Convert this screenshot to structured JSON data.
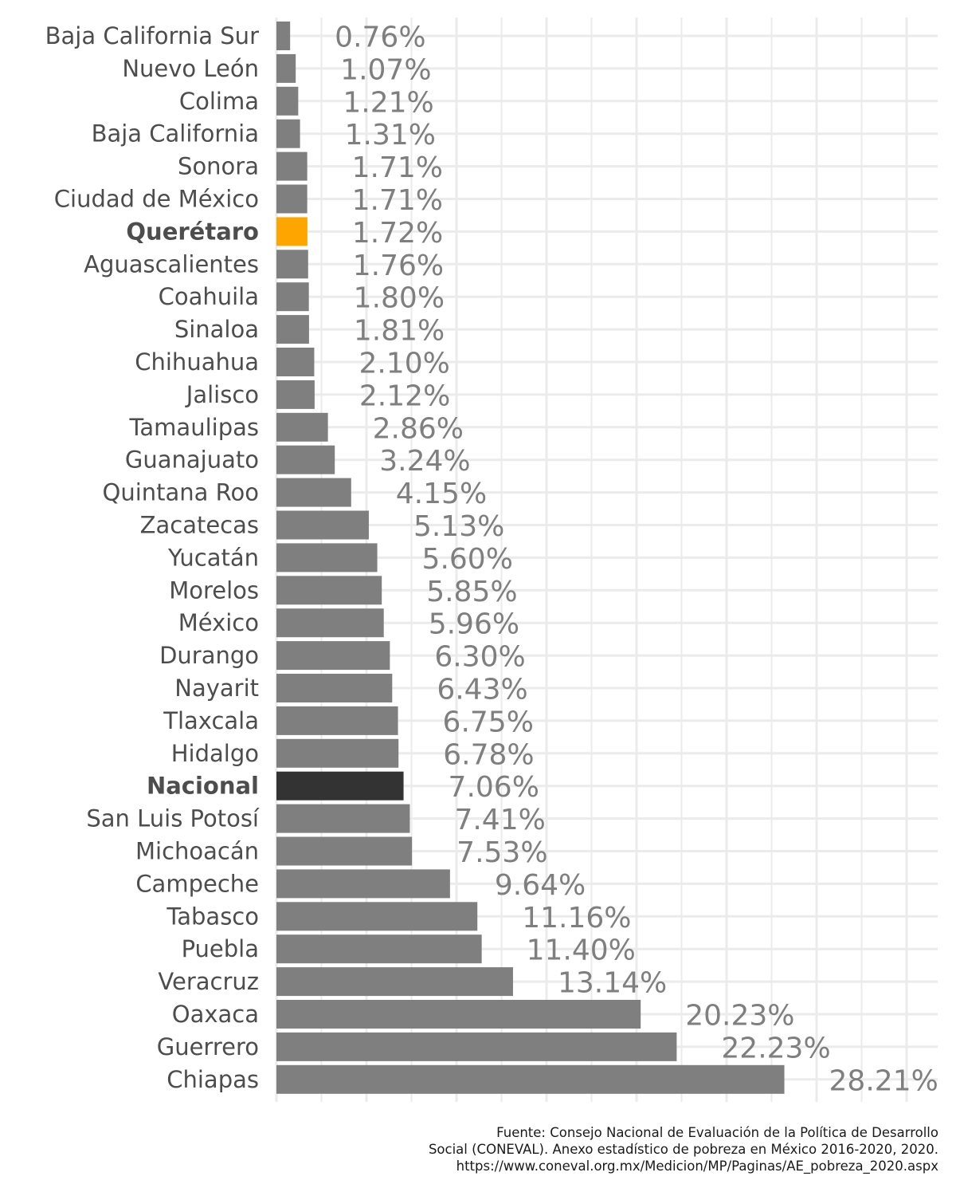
{
  "chart_data": {
    "type": "bar",
    "orientation": "horizontal",
    "categories": [
      "Baja California Sur",
      "Nuevo León",
      "Colima",
      "Baja California",
      "Sonora",
      "Ciudad de México",
      "Querétaro",
      "Aguascalientes",
      "Coahuila",
      "Sinaloa",
      "Chihuahua",
      "Jalisco",
      "Tamaulipas",
      "Guanajuato",
      "Quintana Roo",
      "Zacatecas",
      "Yucatán",
      "Morelos",
      "México",
      "Durango",
      "Nayarit",
      "Tlaxcala",
      "Hidalgo",
      "Nacional",
      "San Luis Potosí",
      "Michoacán",
      "Campeche",
      "Tabasco",
      "Puebla",
      "Veracruz",
      "Oaxaca",
      "Guerrero",
      "Chiapas"
    ],
    "values": [
      0.76,
      1.07,
      1.21,
      1.31,
      1.71,
      1.71,
      1.72,
      1.76,
      1.8,
      1.81,
      2.1,
      2.12,
      2.86,
      3.24,
      4.15,
      5.13,
      5.6,
      5.85,
      5.96,
      6.3,
      6.43,
      6.75,
      6.78,
      7.06,
      7.41,
      7.53,
      9.64,
      11.16,
      11.4,
      13.14,
      20.23,
      22.23,
      28.21
    ],
    "value_labels": [
      "0.76%",
      "1.07%",
      "1.21%",
      "1.31%",
      "1.71%",
      "1.71%",
      "1.72%",
      "1.76%",
      "1.80%",
      "1.81%",
      "2.10%",
      "2.12%",
      "2.86%",
      "3.24%",
      "4.15%",
      "5.13%",
      "5.60%",
      "5.85%",
      "5.96%",
      "6.30%",
      "6.43%",
      "6.75%",
      "6.78%",
      "7.06%",
      "7.41%",
      "7.53%",
      "9.64%",
      "11.16%",
      "11.40%",
      "13.14%",
      "20.23%",
      "22.23%",
      "28.21%"
    ],
    "highlights": {
      "Querétaro": "#ffa500",
      "Nacional": "#333333"
    },
    "default_color": "#7f7f7f",
    "xlim": [
      0,
      35
    ],
    "x_gridlines": [
      0,
      5,
      10,
      15,
      20,
      25,
      30,
      35
    ],
    "grid": true,
    "xlabel": "",
    "ylabel": "",
    "title": ""
  },
  "caption": {
    "lines": [
      "Fuente: Consejo Nacional de Evaluación de la Política de Desarrollo",
      "Social (CONEVAL). Anexo estadístico de pobreza en México 2016-2020, 2020.",
      "https://www.coneval.org.mx/Medicion/MP/Paginas/AE_pobreza_2020.aspx"
    ]
  },
  "colors": {
    "bar": "#7f7f7f",
    "highlight": "#ffa500",
    "national": "#333333",
    "grid": "#ebebeb",
    "label": "#4d4d4d"
  }
}
